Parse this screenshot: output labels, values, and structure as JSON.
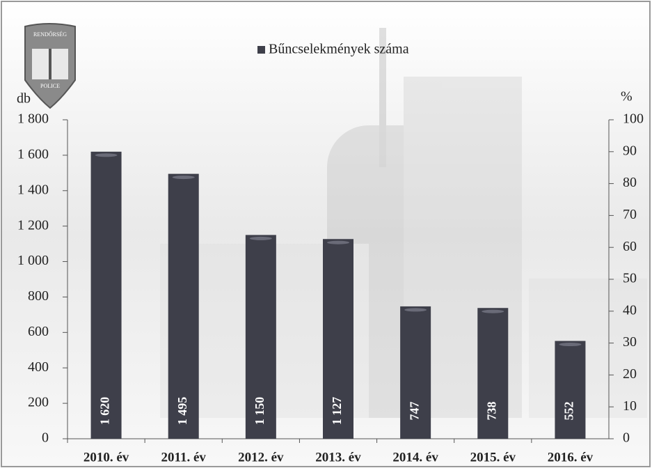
{
  "chart_data": {
    "type": "bar",
    "annotations": [
      "RENDŐRSÉG",
      "POLICE"
    ],
    "y_label": "db",
    "y2_label": "%",
    "categories": [
      "2010. év",
      "2011. év",
      "2012. év",
      "2013. év",
      "2014. év",
      "2015. év",
      "2016. év"
    ],
    "series": [
      {
        "name": "Bűncselekmények száma",
        "color": "#3e3f4a",
        "values": [
          1620,
          1495,
          1150,
          1127,
          747,
          738,
          552
        ],
        "value_labels": [
          "1 620",
          "1 495",
          "1 150",
          "1 127",
          "747",
          "738",
          "552"
        ]
      }
    ],
    "ylim": [
      0,
      1800
    ],
    "yticks": [
      0,
      200,
      400,
      600,
      800,
      {
        "value": 1000,
        "label": "1 000"
      },
      {
        "value": 1200,
        "label": "1 200"
      },
      {
        "value": 1400,
        "label": "1 400"
      },
      {
        "value": 1600,
        "label": "1 600"
      },
      {
        "value": 1800,
        "label": "1 800"
      }
    ],
    "y2lim": [
      0,
      100
    ],
    "y2ticks": [
      0,
      10,
      20,
      30,
      40,
      50,
      60,
      70,
      80,
      90,
      100
    ],
    "legend": "top"
  }
}
